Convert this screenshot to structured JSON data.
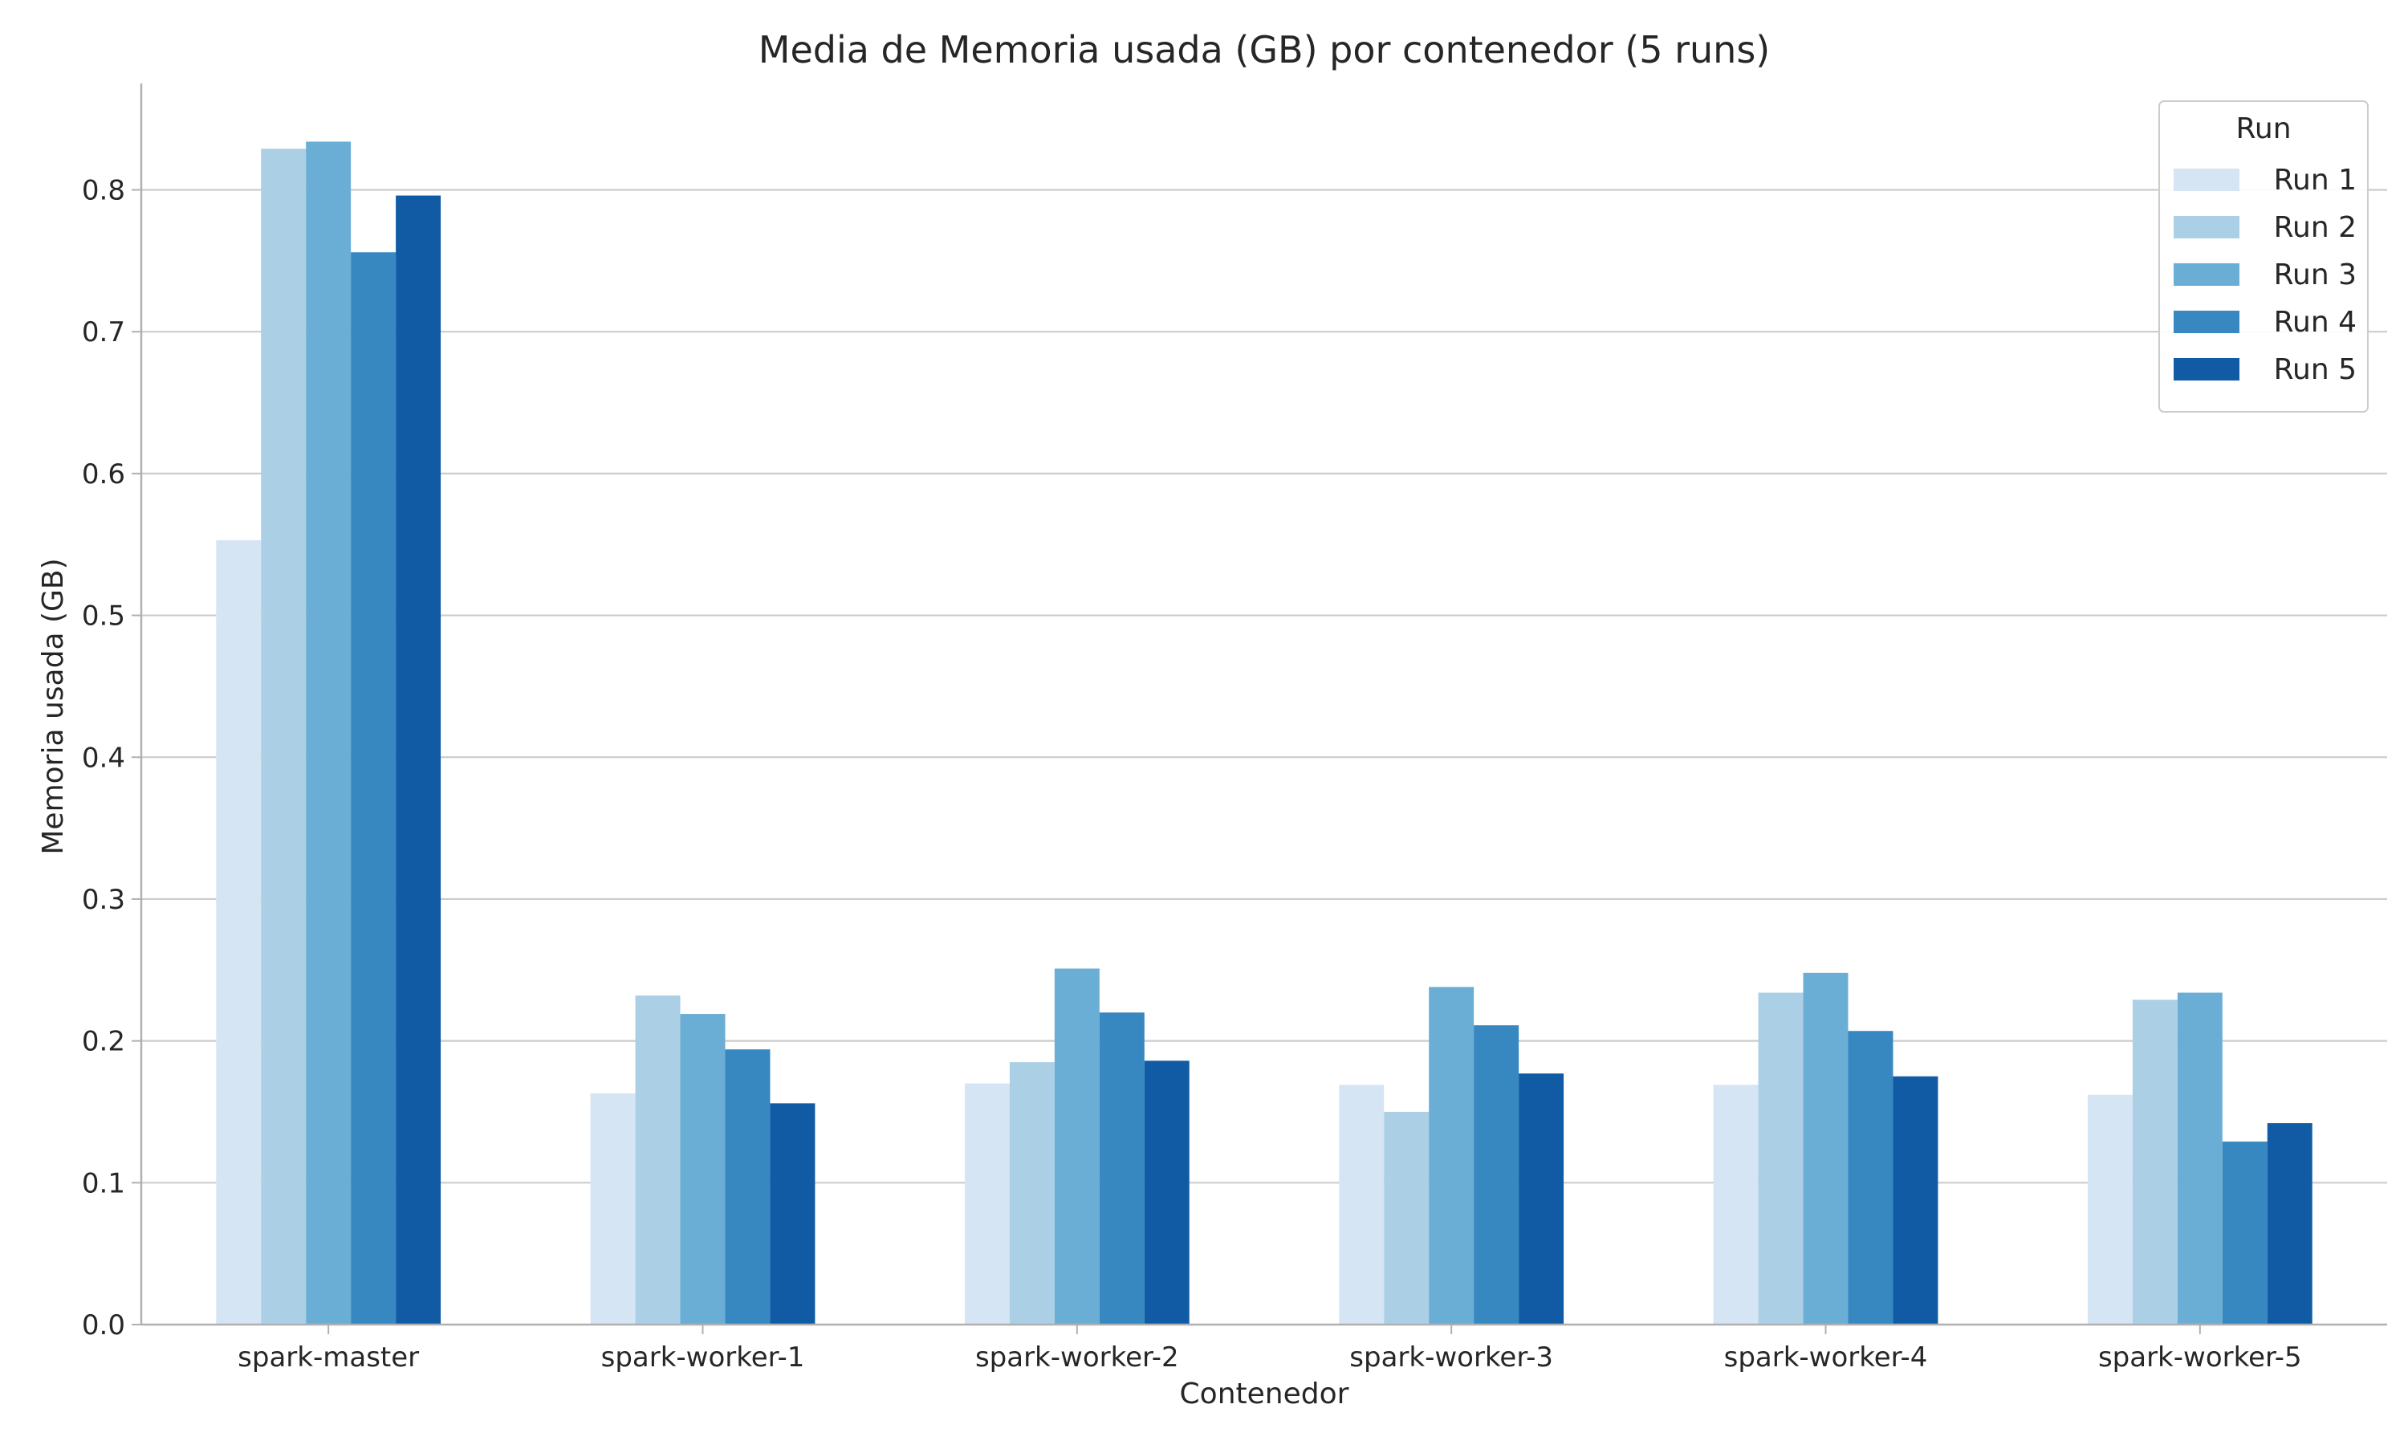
{
  "chart_data": {
    "type": "bar",
    "title": "Media de Memoria usada (GB) por contenedor (5 runs)",
    "xlabel": "Contenedor",
    "ylabel": "Memoria usada (GB)",
    "ylim": [
      0,
      0.875
    ],
    "yticks": [
      "0.0",
      "0.1",
      "0.2",
      "0.3",
      "0.4",
      "0.5",
      "0.6",
      "0.7",
      "0.8"
    ],
    "grid": "horizontal",
    "legend": {
      "title": "Run",
      "placement": "top-right"
    },
    "categories": [
      "spark-master",
      "spark-worker-1",
      "spark-worker-2",
      "spark-worker-3",
      "spark-worker-4",
      "spark-worker-5"
    ],
    "series": [
      {
        "name": "Run 1",
        "color": "#d6e5f4",
        "values": [
          0.553,
          0.163,
          0.17,
          0.169,
          0.169,
          0.162
        ]
      },
      {
        "name": "Run 2",
        "color": "#abcfe5",
        "values": [
          0.829,
          0.232,
          0.185,
          0.15,
          0.234,
          0.229
        ]
      },
      {
        "name": "Run 3",
        "color": "#6aaed6",
        "values": [
          0.834,
          0.219,
          0.251,
          0.238,
          0.248,
          0.234
        ]
      },
      {
        "name": "Run 4",
        "color": "#3787c0",
        "values": [
          0.756,
          0.194,
          0.22,
          0.211,
          0.207,
          0.129
        ]
      },
      {
        "name": "Run 5",
        "color": "#105ba4",
        "values": [
          0.796,
          0.156,
          0.186,
          0.177,
          0.175,
          0.142
        ]
      }
    ]
  }
}
